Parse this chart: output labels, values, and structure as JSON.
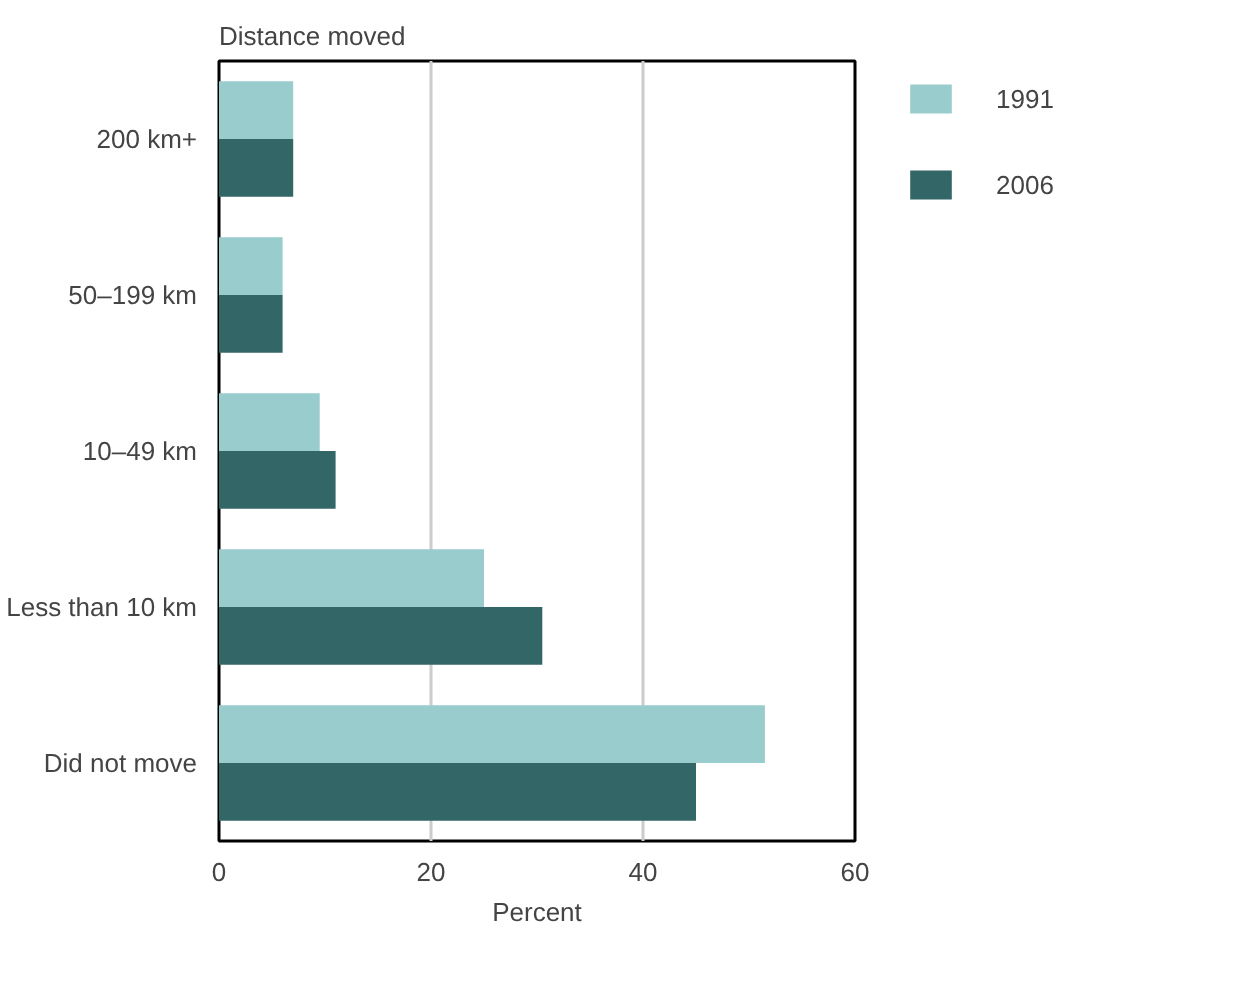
{
  "chart_data": {
    "type": "bar",
    "orientation": "horizontal",
    "title": "Distance moved",
    "xlabel": "Percent",
    "categories": [
      "200 km+",
      "50–199 km",
      "10–49 km",
      "Less than 10 km",
      "Did not move"
    ],
    "series": [
      {
        "name": "1991",
        "color": "#99cccc",
        "values": [
          7,
          6,
          9.5,
          25,
          51.5
        ]
      },
      {
        "name": "2006",
        "color": "#336666",
        "values": [
          7,
          6,
          11,
          30.5,
          45
        ]
      }
    ],
    "xlim": [
      0,
      60
    ],
    "xticks": [
      0,
      20,
      40,
      60
    ],
    "grid": "x",
    "legend": "top right"
  }
}
